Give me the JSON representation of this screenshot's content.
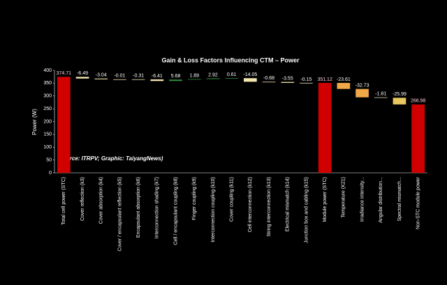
{
  "chart_data": {
    "type": "waterfall",
    "title": "Gain & Loss Factors Influencing CTM – Power",
    "y_label": "Power (W)",
    "annotation": "(Source: ITRPV; Graphic: TaiyangNews)",
    "categories": [
      "Total cell power (STC)",
      "Cover reflection (k3)",
      "Cover absorption (k4)",
      "Cover / encapsulant reflection (k5)",
      "Encapsulant absorption (k6)",
      "Interconnection shading (k7)",
      "Cell / encapsulant coupling (k8)",
      "Finger coupling (k9)",
      "Interconnection coupling (k10)",
      "Cover coupling (k11)",
      "Cell interconnection (k12)",
      "String interconnection (k13)",
      "Electrical mismatch (k14)",
      "Junction box and cabling (k15)",
      "Module power (STC)",
      "Temperature (K21)",
      "Irradiance intensity...",
      "Angular distribution...",
      "Spectral mismatch...",
      "Non-STC module power"
    ],
    "values": [
      374.71,
      -6.49,
      -3.04,
      -0.01,
      -0.31,
      -6.41,
      5.68,
      1.89,
      2.92,
      0.61,
      -14.05,
      -0.68,
      -3.55,
      -0.15,
      351.12,
      -23.61,
      -32.73,
      -1.81,
      -25.99,
      266.98
    ],
    "is_total": [
      true,
      false,
      false,
      false,
      false,
      false,
      false,
      false,
      false,
      false,
      false,
      false,
      false,
      false,
      true,
      false,
      false,
      false,
      false,
      true
    ],
    "colors": [
      "#d00000",
      "#f3e6b0",
      "#f3e6b0",
      "#f3e6b0",
      "#f3e6b0",
      "#f3e6b0",
      "#2e8b3a",
      "#2e8b3a",
      "#2e8b3a",
      "#2e8b3a",
      "#f3e6b0",
      "#f3e6b0",
      "#f3e6b0",
      "#f3e6b0",
      "#d00000",
      "#f0a848",
      "#f0a848",
      "#d8d8b0",
      "#e8c860",
      "#d00000"
    ],
    "ylim": [
      0,
      400
    ],
    "yticks": [
      0,
      50,
      100,
      150,
      200,
      250,
      300,
      350,
      400
    ]
  }
}
